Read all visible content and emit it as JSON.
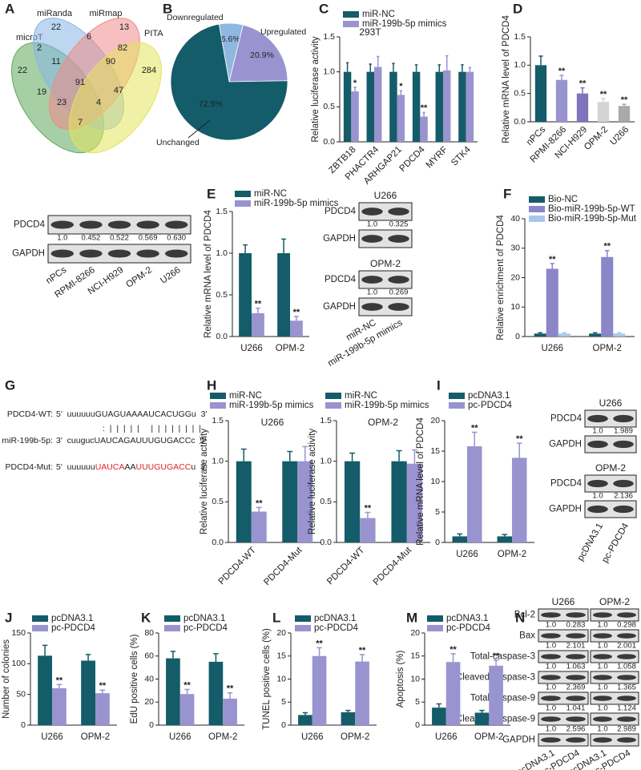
{
  "panel_labels": [
    "A",
    "B",
    "C",
    "D",
    "E",
    "F",
    "G",
    "H",
    "I",
    "J",
    "K",
    "L",
    "M",
    "N"
  ],
  "venn": {
    "sets": [
      {
        "name": "microT",
        "color": "#5fa85c"
      },
      {
        "name": "miRanda",
        "color": "#86b7e3"
      },
      {
        "name": "miRmap",
        "color": "#f08a8a"
      },
      {
        "name": "PITA",
        "color": "#e3e35c"
      }
    ],
    "regions": [
      22,
      13,
      6,
      2,
      82,
      11,
      90,
      22,
      284,
      19,
      91,
      47,
      23,
      4,
      7
    ]
  },
  "alignment": [
    {
      "label": "PDCD4-WT:",
      "segments": [
        {
          "text": "5'  uuuuuuGUAGUAAAAUCACUGGu  3'"
        }
      ]
    },
    {
      "segments": [
        {
          "text": ":  |  |  |  |  |     |  |  |  |  |  |  |  |"
        }
      ]
    },
    {
      "label": "miR-199b-5p:",
      "segments": [
        {
          "text": "3'  cuugucUAUCAGAUUUGUGACCc  5'"
        }
      ]
    },
    {
      "label": "PDCD4-Mut:",
      "segments": [
        {
          "text": "5'  uuuuuu"
        },
        {
          "text": "UAUCA",
          "highlight": true
        },
        {
          "text": "AA"
        },
        {
          "text": "UUUGUGACC",
          "highlight": true
        },
        {
          "text": "u  3'"
        }
      ]
    }
  ],
  "blots": {
    "d": {
      "rows": [
        {
          "label": "PDCD4",
          "values": [
            "1.0",
            "0.452",
            "0.522",
            "0.569",
            "0.630"
          ]
        },
        {
          "label": "GAPDH"
        }
      ],
      "lanes": [
        "nPCs",
        "RPMI-8266",
        "NCI-H929",
        "OPM-2",
        "U266"
      ]
    },
    "e_u266": {
      "title": "U266",
      "rows": [
        {
          "label": "PDCD4",
          "values": [
            "1.0",
            "0.325"
          ]
        },
        {
          "label": "GAPDH"
        }
      ]
    },
    "e_opm2": {
      "title": "OPM-2",
      "rows": [
        {
          "label": "PDCD4",
          "values": [
            "1.0",
            "0.269"
          ]
        },
        {
          "label": "GAPDH"
        }
      ],
      "lanes": [
        "miR-NC",
        "miR-199b-5p mimics"
      ]
    },
    "i_u266": {
      "title": "U266",
      "rows": [
        {
          "label": "PDCD4",
          "values": [
            "1.0",
            "1.989"
          ]
        },
        {
          "label": "GAPDH"
        }
      ]
    },
    "i_opm2": {
      "title": "OPM-2",
      "rows": [
        {
          "label": "PDCD4",
          "values": [
            "1.0",
            "2.136"
          ]
        },
        {
          "label": "GAPDH"
        }
      ],
      "lanes": [
        "pcDNA3.1",
        "pc-PDCD4"
      ]
    },
    "n_u266": {
      "title": "U266",
      "rows": [
        {
          "label": "Bcl-2",
          "values": [
            "1.0",
            "0.283"
          ]
        },
        {
          "label": "Bax",
          "values": [
            "1.0",
            "2.101"
          ]
        },
        {
          "label": "Total-caspase-3",
          "values": [
            "1.0",
            "1.063"
          ]
        },
        {
          "label": "Cleaved-caspase-3",
          "values": [
            "1.0",
            "2.369"
          ]
        },
        {
          "label": "Total-caspase-9",
          "values": [
            "1.0",
            "1.041"
          ]
        },
        {
          "label": "Cleaved-caspase-9",
          "values": [
            "1.0",
            "2.596"
          ]
        },
        {
          "label": "GAPDH"
        }
      ],
      "lanes": [
        "pcDNA3.1",
        "pc-PDCD4"
      ]
    },
    "n_opm2": {
      "title": "OPM-2",
      "rows": [
        {
          "values": [
            "1.0",
            "0.298"
          ]
        },
        {
          "values": [
            "1.0",
            "2.001"
          ]
        },
        {
          "values": [
            "1.0",
            "1.058"
          ]
        },
        {
          "values": [
            "1.0",
            "1.365"
          ]
        },
        {
          "values": [
            "1.0",
            "1.124"
          ]
        },
        {
          "values": [
            "1.0",
            "2.989"
          ]
        },
        {}
      ],
      "lanes": [
        "pcDNA3.1",
        "pc-PDCD4"
      ]
    }
  },
  "chart_data": [
    {
      "type": "pie",
      "categories": [
        "Downregulated",
        "Upregulated",
        "Unchanged"
      ],
      "values": [
        6.6,
        20.9,
        72.5
      ],
      "value_labels": [
        "6.6%",
        "20.9%",
        "72.5%"
      ],
      "colors": [
        "#8fb8e0",
        "#9994cf",
        "#145c69"
      ]
    },
    {
      "type": "bar",
      "title": "293T",
      "y_label": "Relative luciferase activity",
      "categories": [
        "ZBTB18",
        "PHACTR4",
        "ARHGAP21",
        "PDCD4",
        "MYRF",
        "STK4"
      ],
      "series": [
        {
          "name": "miR-NC",
          "color": "#145c69",
          "values": [
            1,
            1,
            1,
            1,
            1,
            1
          ],
          "errors": [
            0.13,
            0.11,
            0.12,
            0.1,
            0.1,
            0.1
          ]
        },
        {
          "name": "miR-199b-5p mimics",
          "color": "#9994cf",
          "values": [
            0.72,
            1.07,
            0.67,
            0.36,
            1.02,
            1.0
          ],
          "errors": [
            0.06,
            0.15,
            0.06,
            0.06,
            0.21,
            0.06
          ],
          "significance": [
            "*",
            null,
            "*",
            "**",
            null,
            null
          ]
        }
      ],
      "ylim": [
        0,
        1.5
      ],
      "yticks": [
        {
          "value": 0,
          "label": "0.0"
        },
        0.5,
        {
          "value": 1,
          "label": "1.0"
        },
        1.5
      ]
    },
    {
      "type": "bar",
      "y_label": "Relative mRNA level of PDCD4",
      "categories": [
        "nPCs",
        "RPMI-8266",
        "NCI-H929",
        "OPM-2",
        "U266"
      ],
      "values": [
        1.0,
        0.74,
        0.5,
        0.35,
        0.28
      ],
      "errors": [
        0.16,
        0.08,
        0.1,
        0.06,
        0.03
      ],
      "colors": [
        "#145c69",
        "#9994cf",
        "#7d74bd",
        "#d4d4d4",
        "#a9a9a9"
      ],
      "significance": [
        null,
        "**",
        "**",
        "**",
        "**"
      ],
      "ylim": [
        0,
        1.5
      ],
      "yticks": [
        {
          "value": 0,
          "label": "0.0"
        },
        0.5,
        {
          "value": 1,
          "label": "1.0"
        },
        1.5
      ]
    },
    {
      "type": "bar",
      "y_label": "Relative mRNA level of PDCD4",
      "categories": [
        "U266",
        "OPM-2"
      ],
      "series": [
        {
          "name": "miR-NC",
          "color": "#145c69",
          "values": [
            1,
            1
          ],
          "errors": [
            0.1,
            0.17
          ]
        },
        {
          "name": "miR-199b-5p mimics",
          "color": "#9994cf",
          "values": [
            0.28,
            0.19
          ],
          "errors": [
            0.06,
            0.05
          ],
          "significance": [
            "**",
            "**"
          ]
        }
      ],
      "ylim": [
        0,
        1.5
      ],
      "yticks": [
        {
          "value": 0,
          "label": "0.0"
        },
        0.5,
        {
          "value": 1,
          "label": "1.0"
        },
        1.5
      ]
    },
    {
      "type": "bar",
      "y_label": "Relative enrichment of PDCD4",
      "categories": [
        "U266",
        "OPM-2"
      ],
      "series": [
        {
          "name": "Bio-NC",
          "color": "#145c69",
          "values": [
            1,
            1
          ],
          "errors": [
            0.3,
            0.3
          ]
        },
        {
          "name": "Bio-miR-199b-5p-WT",
          "color": "#8a86c8",
          "values": [
            23,
            27
          ],
          "errors": [
            1.8,
            2.2
          ],
          "significance": [
            "**",
            "**"
          ]
        },
        {
          "name": "Bio-miR-199b-5p-Mut",
          "color": "#a8c6ea",
          "values": [
            1,
            1
          ],
          "errors": [
            0.3,
            0.3
          ]
        }
      ],
      "ylim": [
        0,
        40
      ],
      "yticks": [
        0,
        10,
        20,
        30,
        40
      ]
    },
    {
      "type": "bar",
      "title": "U266",
      "y_label": "Relative luciferase activity",
      "categories": [
        "PDCD4-WT",
        "PDCD4-Mut"
      ],
      "series": [
        {
          "name": "miR-NC",
          "color": "#145c69",
          "values": [
            1,
            1
          ],
          "errors": [
            0.15,
            0.12
          ]
        },
        {
          "name": "miR-199b-5p mimics",
          "color": "#9994cf",
          "values": [
            0.38,
            1.0
          ],
          "errors": [
            0.05,
            0.18
          ],
          "significance": [
            "**",
            null
          ]
        }
      ],
      "ylim": [
        0,
        1.5
      ],
      "yticks": [
        {
          "value": 0,
          "label": "0.0"
        },
        0.5,
        {
          "value": 1,
          "label": "1.0"
        },
        1.5
      ]
    },
    {
      "type": "bar",
      "title": "OPM-2",
      "y_label": "Relative luciferase activity",
      "categories": [
        "PDCD4-WT",
        "PDCD4-Mut"
      ],
      "series": [
        {
          "name": "miR-NC",
          "color": "#145c69",
          "values": [
            1,
            1
          ],
          "errors": [
            0.1,
            0.13
          ]
        },
        {
          "name": "miR-199b-5p mimics",
          "color": "#9994cf",
          "values": [
            0.3,
            0.97
          ],
          "errors": [
            0.07,
            0.17
          ],
          "significance": [
            "**",
            null
          ]
        }
      ],
      "ylim": [
        0,
        1.5
      ],
      "yticks": [
        {
          "value": 0,
          "label": "0.0"
        },
        0.5,
        {
          "value": 1,
          "label": "1.0"
        },
        1.5
      ]
    },
    {
      "type": "bar",
      "y_label": "Relative mRNA level of PDCD4",
      "categories": [
        "U266",
        "OPM-2"
      ],
      "series": [
        {
          "name": "pcDNA3.1",
          "color": "#145c69",
          "values": [
            1,
            1
          ],
          "errors": [
            0.4,
            0.3
          ]
        },
        {
          "name": "pc-PDCD4",
          "color": "#9994cf",
          "values": [
            15.8,
            13.9
          ],
          "errors": [
            2.3,
            2.4
          ],
          "significance": [
            "**",
            "**"
          ]
        }
      ],
      "ylim": [
        0,
        20
      ],
      "yticks": [
        0,
        5,
        10,
        15,
        20
      ]
    },
    {
      "type": "bar",
      "y_label": "Number of colonies",
      "categories": [
        "U266",
        "OPM-2"
      ],
      "series": [
        {
          "name": "pcDNA3.1",
          "color": "#145c69",
          "values": [
            113,
            105
          ],
          "errors": [
            17,
            10
          ]
        },
        {
          "name": "pc-PDCD4",
          "color": "#9994cf",
          "values": [
            60,
            52
          ],
          "errors": [
            6,
            5
          ],
          "significance": [
            "**",
            "**"
          ]
        }
      ],
      "ylim": [
        0,
        150
      ],
      "yticks": [
        0,
        50,
        100,
        150
      ]
    },
    {
      "type": "bar",
      "y_label": "EdU positive cells (%)",
      "categories": [
        "U266",
        "OPM-2"
      ],
      "series": [
        {
          "name": "pcDNA3.1",
          "color": "#145c69",
          "values": [
            58,
            55
          ],
          "errors": [
            6,
            7
          ]
        },
        {
          "name": "pc-PDCD4",
          "color": "#9994cf",
          "values": [
            27,
            23
          ],
          "errors": [
            4,
            5
          ],
          "significance": [
            "**",
            "**"
          ]
        }
      ],
      "ylim": [
        0,
        80
      ],
      "yticks": [
        0,
        20,
        40,
        60,
        80
      ]
    },
    {
      "type": "bar",
      "y_label": "TUNEL positive cells (%)",
      "categories": [
        "U266",
        "OPM-2"
      ],
      "series": [
        {
          "name": "pcDNA3.1",
          "color": "#145c69",
          "values": [
            2.2,
            2.8
          ],
          "errors": [
            0.5,
            0.4
          ]
        },
        {
          "name": "pc-PDCD4",
          "color": "#9994cf",
          "values": [
            15,
            13.8
          ],
          "errors": [
            1.8,
            1.5
          ],
          "significance": [
            "**",
            "**"
          ]
        }
      ],
      "ylim": [
        0,
        20
      ],
      "yticks": [
        0,
        5,
        10,
        15,
        20
      ]
    },
    {
      "type": "bar",
      "y_label": "Apoptosis (%)",
      "categories": [
        "U266",
        "OPM-2"
      ],
      "series": [
        {
          "name": "pcDNA3.1",
          "color": "#145c69",
          "values": [
            3.8,
            2.7
          ],
          "errors": [
            0.8,
            0.5
          ]
        },
        {
          "name": "pc-PDCD4",
          "color": "#9994cf",
          "values": [
            13.7,
            12.9
          ],
          "errors": [
            1.8,
            1.2
          ],
          "significance": [
            "**",
            "**"
          ]
        }
      ],
      "ylim": [
        0,
        20
      ],
      "yticks": [
        0,
        5,
        10,
        15,
        20
      ]
    }
  ]
}
